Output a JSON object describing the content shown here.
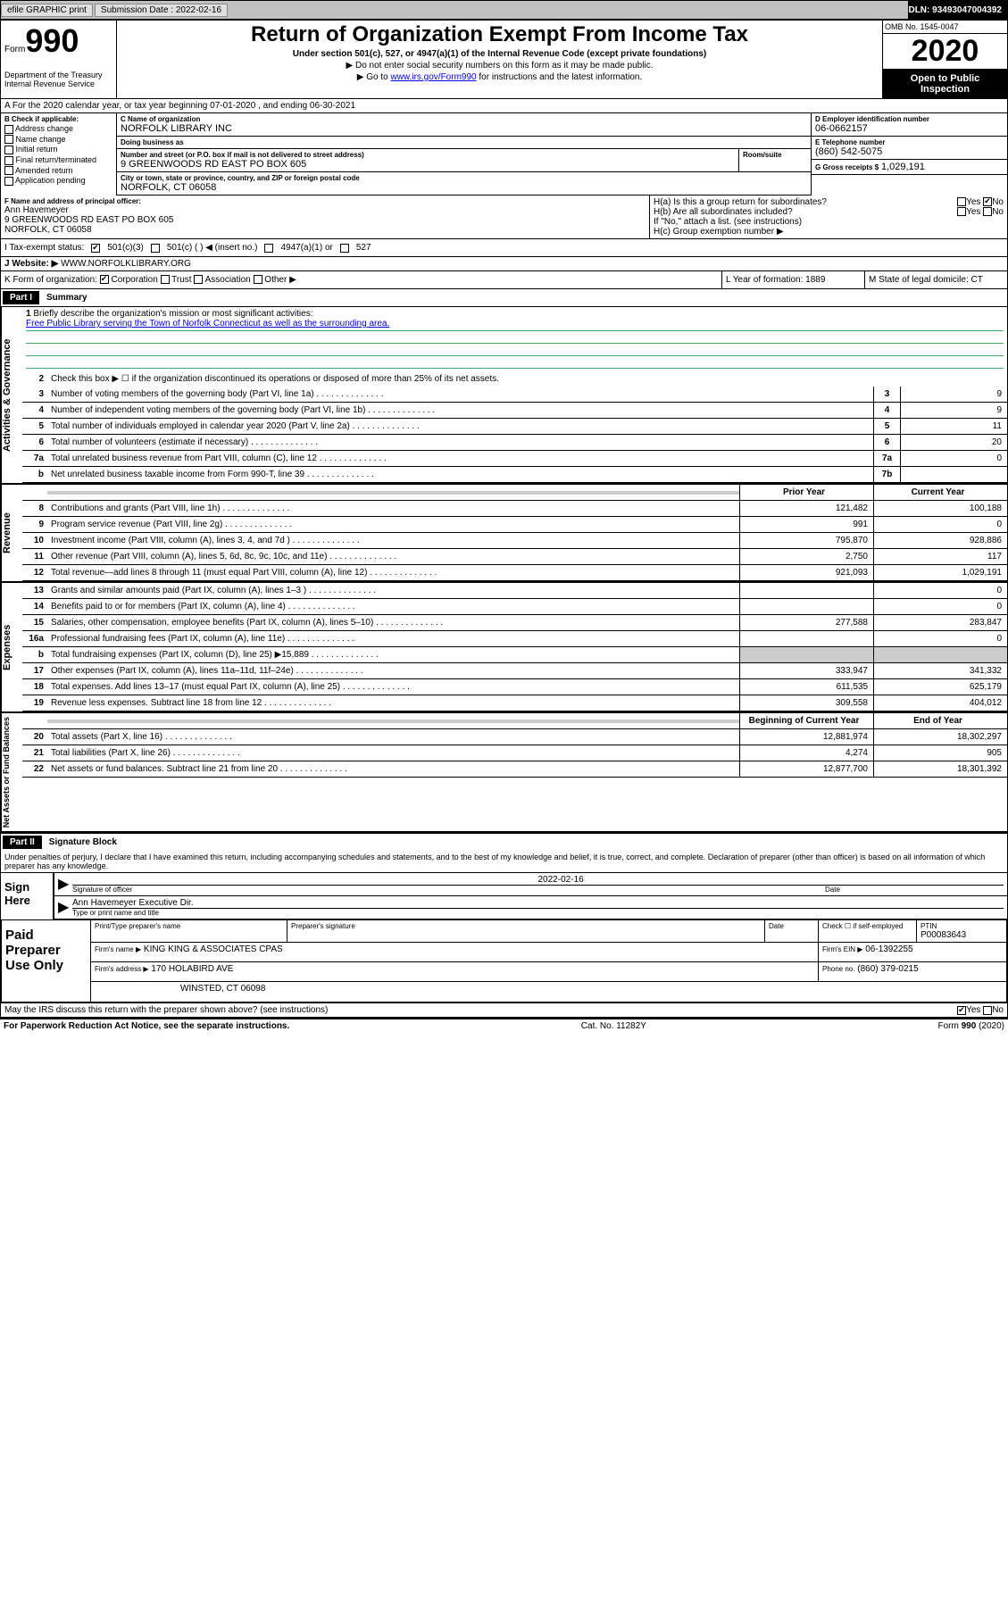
{
  "topbar": {
    "efile": "efile GRAPHIC print",
    "submission_label": "Submission Date : 2022-02-16",
    "dln": "DLN: 93493047004392"
  },
  "header": {
    "form_prefix": "Form",
    "form_number": "990",
    "dept": "Department of the Treasury Internal Revenue Service",
    "title": "Return of Organization Exempt From Income Tax",
    "subtitle": "Under section 501(c), 527, or 4947(a)(1) of the Internal Revenue Code (except private foundations)",
    "instr1": "▶ Do not enter social security numbers on this form as it may be made public.",
    "instr2_pre": "▶ Go to ",
    "instr2_link": "www.irs.gov/Form990",
    "instr2_post": " for instructions and the latest information.",
    "omb": "OMB No. 1545-0047",
    "year": "2020",
    "open": "Open to Public Inspection"
  },
  "row_a": "A For the 2020 calendar year, or tax year beginning 07-01-2020   , and ending 06-30-2021",
  "col_b": {
    "label": "B Check if applicable:",
    "opts": [
      "Address change",
      "Name change",
      "Initial return",
      "Final return/terminated",
      "Amended return",
      "Application pending"
    ]
  },
  "col_c": {
    "name_label": "C Name of organization",
    "name": "NORFOLK LIBRARY INC",
    "dba_label": "Doing business as",
    "dba": "",
    "street_label": "Number and street (or P.O. box if mail is not delivered to street address)",
    "street": "9 GREENWOODS RD EAST PO BOX 605",
    "room_label": "Room/suite",
    "city_label": "City or town, state or province, country, and ZIP or foreign postal code",
    "city": "NORFOLK, CT  06058"
  },
  "col_right": {
    "d_label": "D Employer identification number",
    "d_val": "06-0662157",
    "e_label": "E Telephone number",
    "e_val": "(860) 542-5075",
    "g_label": "G Gross receipts $",
    "g_val": "1,029,191"
  },
  "row_f": {
    "f_label": "F Name and address of principal officer:",
    "f_name": "Ann Havemeyer",
    "f_addr1": "9 GREENWOODS RD EAST PO BOX 605",
    "f_addr2": "NORFOLK, CT  06058",
    "ha": "H(a)  Is this a group return for subordinates?",
    "ha_no": "No",
    "hb": "H(b)  Are all subordinates included?",
    "hb_note": "If \"No,\" attach a list. (see instructions)",
    "hc": "H(c)  Group exemption number ▶"
  },
  "row_i": {
    "label": "I  Tax-exempt status:",
    "opt1": "501(c)(3)",
    "opt2": "501(c) (   ) ◀ (insert no.)",
    "opt3": "4947(a)(1) or",
    "opt4": "527"
  },
  "row_j": {
    "label": "J  Website: ▶",
    "val": "WWW.NORFOLKLIBRARY.ORG"
  },
  "row_k": {
    "label": "K Form of organization:",
    "opts": [
      "Corporation",
      "Trust",
      "Association",
      "Other ▶"
    ],
    "l_label": "L Year of formation:",
    "l_val": "1889",
    "m_label": "M State of legal domicile:",
    "m_val": "CT"
  },
  "part1": {
    "hdr": "Part I",
    "title": "Summary",
    "side_gov": "Activities & Governance",
    "side_rev": "Revenue",
    "side_exp": "Expenses",
    "side_net": "Net Assets or Fund Balances",
    "l1": "Briefly describe the organization's mission or most significant activities:",
    "l1_text": "Free Public Library serving the Town of Norfolk Connecticut as well as the surrounding area.",
    "l2": "Check this box ▶ ☐  if the organization discontinued its operations or disposed of more than 25% of its net assets.",
    "lines_gov": [
      {
        "n": "3",
        "d": "Number of voting members of the governing body (Part VI, line 1a)",
        "b": "3",
        "v": "9"
      },
      {
        "n": "4",
        "d": "Number of independent voting members of the governing body (Part VI, line 1b)",
        "b": "4",
        "v": "9"
      },
      {
        "n": "5",
        "d": "Total number of individuals employed in calendar year 2020 (Part V, line 2a)",
        "b": "5",
        "v": "11"
      },
      {
        "n": "6",
        "d": "Total number of volunteers (estimate if necessary)",
        "b": "6",
        "v": "20"
      },
      {
        "n": "7a",
        "d": "Total unrelated business revenue from Part VIII, column (C), line 12",
        "b": "7a",
        "v": "0"
      },
      {
        "n": "b",
        "d": "Net unrelated business taxable income from Form 990-T, line 39",
        "b": "7b",
        "v": ""
      }
    ],
    "col_hdr_prior": "Prior Year",
    "col_hdr_curr": "Current Year",
    "lines_rev": [
      {
        "n": "8",
        "d": "Contributions and grants (Part VIII, line 1h)",
        "p": "121,482",
        "c": "100,188"
      },
      {
        "n": "9",
        "d": "Program service revenue (Part VIII, line 2g)",
        "p": "991",
        "c": "0"
      },
      {
        "n": "10",
        "d": "Investment income (Part VIII, column (A), lines 3, 4, and 7d )",
        "p": "795,870",
        "c": "928,886"
      },
      {
        "n": "11",
        "d": "Other revenue (Part VIII, column (A), lines 5, 6d, 8c, 9c, 10c, and 11e)",
        "p": "2,750",
        "c": "117"
      },
      {
        "n": "12",
        "d": "Total revenue—add lines 8 through 11 (must equal Part VIII, column (A), line 12)",
        "p": "921,093",
        "c": "1,029,191"
      }
    ],
    "lines_exp": [
      {
        "n": "13",
        "d": "Grants and similar amounts paid (Part IX, column (A), lines 1–3 )",
        "p": "",
        "c": "0"
      },
      {
        "n": "14",
        "d": "Benefits paid to or for members (Part IX, column (A), line 4)",
        "p": "",
        "c": "0"
      },
      {
        "n": "15",
        "d": "Salaries, other compensation, employee benefits (Part IX, column (A), lines 5–10)",
        "p": "277,588",
        "c": "283,847"
      },
      {
        "n": "16a",
        "d": "Professional fundraising fees (Part IX, column (A), line 11e)",
        "p": "",
        "c": "0"
      },
      {
        "n": "b",
        "d": "Total fundraising expenses (Part IX, column (D), line 25) ▶15,889",
        "p": "gray",
        "c": "gray"
      },
      {
        "n": "17",
        "d": "Other expenses (Part IX, column (A), lines 11a–11d, 11f–24e)",
        "p": "333,947",
        "c": "341,332"
      },
      {
        "n": "18",
        "d": "Total expenses. Add lines 13–17 (must equal Part IX, column (A), line 25)",
        "p": "611,535",
        "c": "625,179"
      },
      {
        "n": "19",
        "d": "Revenue less expenses. Subtract line 18 from line 12",
        "p": "309,558",
        "c": "404,012"
      }
    ],
    "col_hdr_begin": "Beginning of Current Year",
    "col_hdr_end": "End of Year",
    "lines_net": [
      {
        "n": "20",
        "d": "Total assets (Part X, line 16)",
        "p": "12,881,974",
        "c": "18,302,297"
      },
      {
        "n": "21",
        "d": "Total liabilities (Part X, line 26)",
        "p": "4,274",
        "c": "905"
      },
      {
        "n": "22",
        "d": "Net assets or fund balances. Subtract line 21 from line 20",
        "p": "12,877,700",
        "c": "18,301,392"
      }
    ]
  },
  "part2": {
    "hdr": "Part II",
    "title": "Signature Block",
    "text": "Under penalties of perjury, I declare that I have examined this return, including accompanying schedules and statements, and to the best of my knowledge and belief, it is true, correct, and complete. Declaration of preparer (other than officer) is based on all information of which preparer has any knowledge.",
    "sign_here": "Sign Here",
    "sig_officer": "Signature of officer",
    "date": "Date",
    "date_val": "2022-02-16",
    "name_title": "Ann Havemeyer  Executive Dir.",
    "name_title_lbl": "Type or print name and title",
    "paid": "Paid Preparer Use Only",
    "prep_name_lbl": "Print/Type preparer's name",
    "prep_sig_lbl": "Preparer's signature",
    "prep_date_lbl": "Date",
    "check_lbl": "Check ☐ if self-employed",
    "ptin_lbl": "PTIN",
    "ptin": "P00083643",
    "firm_name_lbl": "Firm's name    ▶",
    "firm_name": "KING KING & ASSOCIATES CPAS",
    "firm_ein_lbl": "Firm's EIN ▶",
    "firm_ein": "06-1392255",
    "firm_addr_lbl": "Firm's address ▶",
    "firm_addr1": "170 HOLABIRD AVE",
    "firm_addr2": "WINSTED, CT  06098",
    "phone_lbl": "Phone no.",
    "phone": "(860) 379-0215",
    "discuss": "May the IRS discuss this return with the preparer shown above? (see instructions)",
    "yes": "Yes",
    "no": "No"
  },
  "footer": {
    "left": "For Paperwork Reduction Act Notice, see the separate instructions.",
    "center": "Cat. No. 11282Y",
    "right": "Form 990 (2020)"
  }
}
